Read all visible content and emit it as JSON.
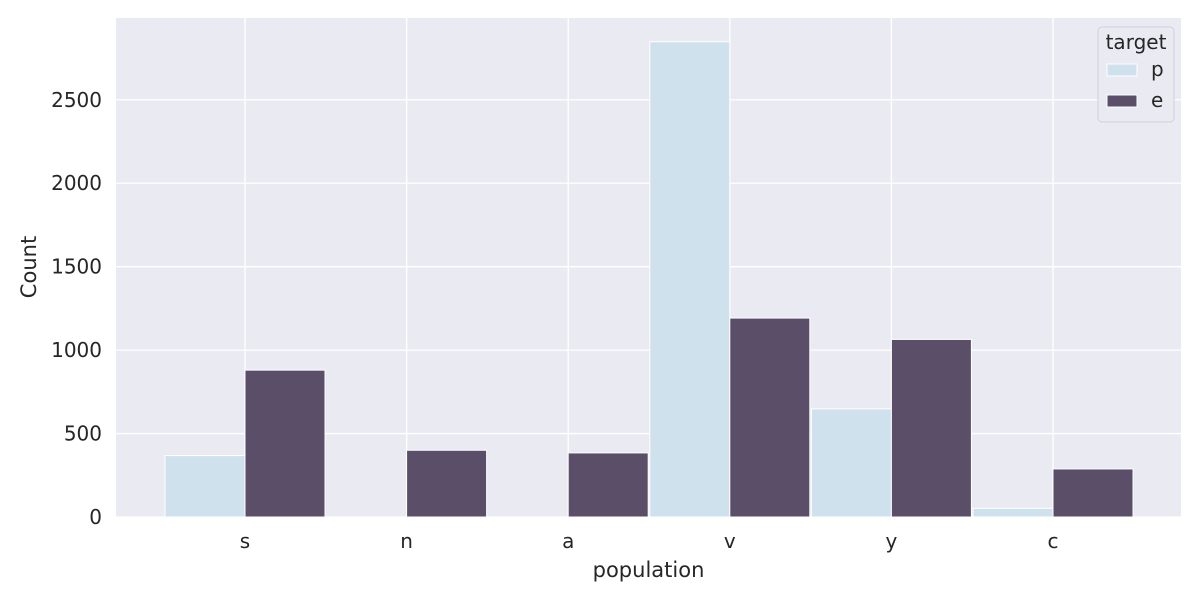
{
  "chart_data": {
    "type": "bar",
    "title": "",
    "xlabel": "population",
    "ylabel": "Count",
    "categories": [
      "s",
      "n",
      "a",
      "v",
      "y",
      "c"
    ],
    "series": [
      {
        "name": "p",
        "values": [
          368,
          0,
          0,
          2848,
          648,
          52
        ],
        "color": "#cfe1ec"
      },
      {
        "name": "e",
        "values": [
          880,
          400,
          384,
          1192,
          1064,
          288
        ],
        "color": "#5a4e68"
      }
    ],
    "ylim": [
      0,
      2990
    ],
    "yticks": [
      0,
      500,
      1000,
      1500,
      2000,
      2500
    ],
    "grid": true,
    "legend": {
      "title": "target",
      "placement": "top-right"
    },
    "colors": {
      "background": "#eaeaf2",
      "grid": "#ffffff",
      "text": "#262626"
    }
  }
}
